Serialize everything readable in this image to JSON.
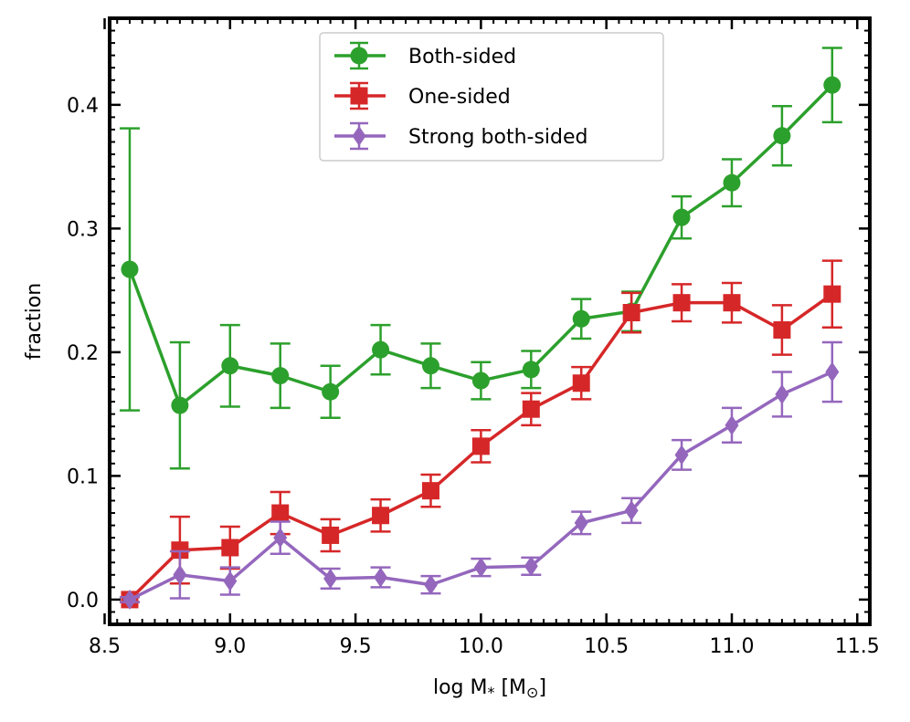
{
  "chart_data": {
    "type": "line",
    "xlabel": "log M",
    "xlabel_sub": "*",
    "xlabel_unit_open": " [M",
    "xlabel_unit_sub": "⊙",
    "xlabel_unit_close": "]",
    "ylabel": "fraction",
    "xlim": [
      8.52,
      11.55
    ],
    "ylim": [
      -0.02,
      0.47
    ],
    "xticks": [
      8.5,
      9.0,
      9.5,
      10.0,
      10.5,
      11.0,
      11.5
    ],
    "xtick_labels": [
      "8.5",
      "9.0",
      "9.5",
      "10.0",
      "10.5",
      "11.0",
      "11.5"
    ],
    "yticks": [
      0.0,
      0.1,
      0.2,
      0.3,
      0.4
    ],
    "ytick_labels": [
      "0.0",
      "0.1",
      "0.2",
      "0.3",
      "0.4"
    ],
    "grid": false,
    "legend_position": "top-center",
    "x": [
      8.6,
      8.8,
      9.0,
      9.2,
      9.4,
      9.6,
      9.8,
      10.0,
      10.2,
      10.4,
      10.6,
      10.8,
      11.0,
      11.2,
      11.4
    ],
    "series": [
      {
        "name": "Both-sided",
        "color": "#2ca02c",
        "marker": "circle",
        "values": [
          0.267,
          0.157,
          0.189,
          0.181,
          0.168,
          0.202,
          0.189,
          0.177,
          0.186,
          0.227,
          0.233,
          0.309,
          0.337,
          0.375,
          0.416
        ],
        "errors": [
          0.114,
          0.051,
          0.033,
          0.026,
          0.021,
          0.02,
          0.018,
          0.015,
          0.015,
          0.016,
          0.016,
          0.017,
          0.019,
          0.024,
          0.03
        ]
      },
      {
        "name": "One-sided",
        "color": "#d62728",
        "marker": "square",
        "values": [
          0.0,
          0.04,
          0.042,
          0.07,
          0.052,
          0.068,
          0.088,
          0.124,
          0.154,
          0.175,
          0.232,
          0.24,
          0.24,
          0.218,
          0.247
        ],
        "errors": [
          0.002,
          0.027,
          0.017,
          0.017,
          0.013,
          0.013,
          0.013,
          0.013,
          0.013,
          0.013,
          0.016,
          0.015,
          0.016,
          0.02,
          0.027
        ]
      },
      {
        "name": "Strong both-sided",
        "color": "#9467bd",
        "marker": "diamond",
        "values": [
          0.0,
          0.02,
          0.015,
          0.05,
          0.017,
          0.018,
          0.012,
          0.026,
          0.027,
          0.062,
          0.072,
          0.117,
          0.141,
          0.166,
          0.184
        ],
        "errors": [
          0.002,
          0.019,
          0.011,
          0.013,
          0.008,
          0.008,
          0.007,
          0.007,
          0.007,
          0.009,
          0.01,
          0.012,
          0.014,
          0.018,
          0.024
        ]
      }
    ]
  }
}
